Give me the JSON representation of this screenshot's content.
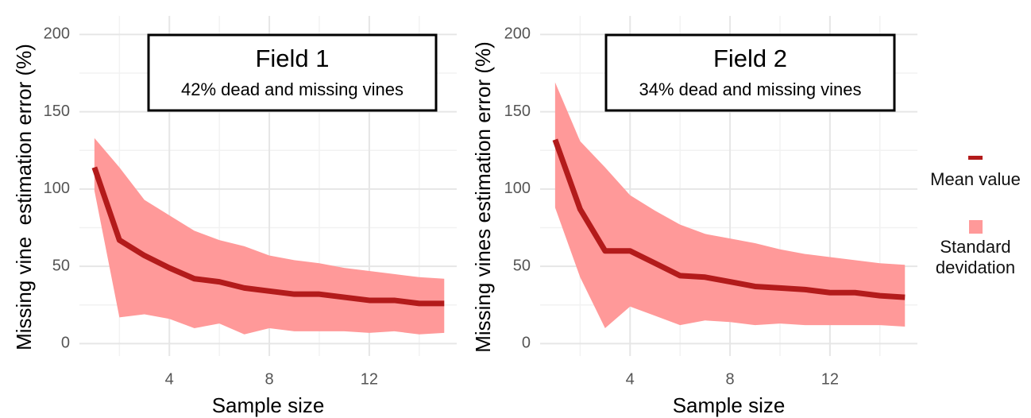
{
  "chart_data": [
    {
      "type": "band-line",
      "x": [
        1,
        2,
        3,
        4,
        5,
        6,
        7,
        8,
        9,
        10,
        11,
        12,
        13,
        14,
        15
      ],
      "xlim": [
        0.4,
        15.5
      ],
      "xticks": [
        4,
        8,
        12
      ],
      "ylim": [
        -8,
        212
      ],
      "yticks": [
        0,
        50,
        100,
        150,
        200
      ],
      "grid": true,
      "xlabel": "Sample size",
      "ylabel": "Missing vine  estimation error (%)",
      "annotation": {
        "title": "Field 1",
        "subtitle": "42% dead and missing vines"
      },
      "series": [
        {
          "name": "Standard devidation",
          "color": "#ff9999",
          "upper": [
            133,
            114,
            93,
            83,
            73,
            67,
            63,
            57,
            54,
            52,
            49,
            47,
            45,
            43,
            42
          ],
          "lower": [
            99,
            17,
            19,
            16,
            10,
            13,
            6,
            10,
            8,
            8,
            8,
            7,
            8,
            6,
            7
          ]
        },
        {
          "name": "Mean value",
          "color": "#b31b1b",
          "values": [
            114,
            67,
            57,
            49,
            42,
            40,
            36,
            34,
            32,
            32,
            30,
            28,
            28,
            26,
            26
          ]
        }
      ]
    },
    {
      "type": "band-line",
      "x": [
        1,
        2,
        3,
        4,
        5,
        6,
        7,
        8,
        9,
        10,
        11,
        12,
        13,
        14,
        15
      ],
      "xlim": [
        0.4,
        15.5
      ],
      "xticks": [
        4,
        8,
        12
      ],
      "ylim": [
        -8,
        212
      ],
      "yticks": [
        0,
        50,
        100,
        150,
        200
      ],
      "grid": true,
      "xlabel": "Sample size",
      "ylabel": "Missing vines estimation error (%)",
      "annotation": {
        "title": "Field 2",
        "subtitle": "34% dead and missing vines"
      },
      "series": [
        {
          "name": "Standard devidation",
          "color": "#ff9999",
          "upper": [
            169,
            131,
            114,
            96,
            86,
            77,
            71,
            68,
            65,
            61,
            58,
            56,
            54,
            52,
            51
          ],
          "lower": [
            88,
            43,
            10,
            24,
            18,
            12,
            15,
            14,
            12,
            13,
            12,
            12,
            12,
            12,
            11
          ]
        },
        {
          "name": "Mean value",
          "color": "#b31b1b",
          "values": [
            132,
            87,
            60,
            60,
            52,
            44,
            43,
            40,
            37,
            36,
            35,
            33,
            33,
            31,
            30
          ]
        }
      ]
    }
  ]
}
